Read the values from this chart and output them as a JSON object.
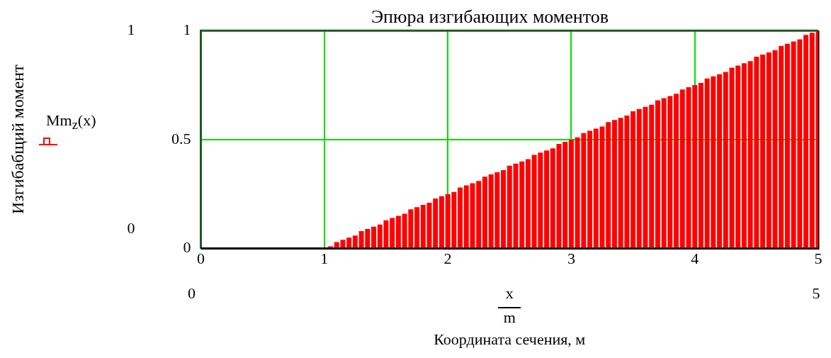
{
  "chart_data": {
    "type": "bar",
    "title": "Эпюра изгибающих моментов",
    "xlabel": "Координата сечения, м",
    "x": [
      1.05,
      1.1,
      1.15,
      1.2,
      1.25,
      1.3,
      1.35,
      1.4,
      1.45,
      1.5,
      1.55,
      1.6,
      1.65,
      1.7,
      1.75,
      1.8,
      1.85,
      1.9,
      1.95,
      2,
      2.05,
      2.1,
      2.15,
      2.2,
      2.25,
      2.3,
      2.35,
      2.4,
      2.45,
      2.5,
      2.55,
      2.6,
      2.65,
      2.7,
      2.75,
      2.8,
      2.85,
      2.9,
      2.95,
      3,
      3.05,
      3.1,
      3.15,
      3.2,
      3.25,
      3.3,
      3.35,
      3.4,
      3.45,
      3.5,
      3.55,
      3.6,
      3.65,
      3.7,
      3.75,
      3.8,
      3.85,
      3.9,
      3.95,
      4,
      4.05,
      4.1,
      4.15,
      4.2,
      4.25,
      4.3,
      4.35,
      4.4,
      4.45,
      4.5,
      4.55,
      4.6,
      4.65,
      4.7,
      4.75,
      4.8,
      4.85,
      4.9,
      4.95,
      5
    ],
    "series": [
      {
        "name": "Mm$_{z}$(x)",
        "color": "#ff0000",
        "values": [
          0.01,
          0.03,
          0.04,
          0.05,
          0.06,
          0.08,
          0.09,
          0.1,
          0.11,
          0.13,
          0.14,
          0.15,
          0.16,
          0.18,
          0.19,
          0.2,
          0.21,
          0.23,
          0.24,
          0.25,
          0.26,
          0.28,
          0.29,
          0.3,
          0.31,
          0.33,
          0.34,
          0.35,
          0.36,
          0.38,
          0.39,
          0.4,
          0.41,
          0.43,
          0.44,
          0.45,
          0.46,
          0.48,
          0.49,
          0.5,
          0.51,
          0.53,
          0.54,
          0.55,
          0.56,
          0.58,
          0.59,
          0.6,
          0.61,
          0.63,
          0.64,
          0.65,
          0.66,
          0.68,
          0.69,
          0.7,
          0.71,
          0.73,
          0.74,
          0.75,
          0.76,
          0.78,
          0.79,
          0.8,
          0.81,
          0.83,
          0.84,
          0.85,
          0.86,
          0.88,
          0.89,
          0.9,
          0.91,
          0.93,
          0.94,
          0.95,
          0.96,
          0.98,
          0.99,
          1
        ]
      }
    ],
    "xlim": [
      0,
      5
    ],
    "xticks": [
      0,
      1,
      2,
      3,
      4,
      5
    ],
    "ylim": [
      0,
      1
    ],
    "yticks": [
      0,
      0.5,
      1
    ],
    "grid": true,
    "legend": "left",
    "annotations": [
      "1",
      "0",
      "0",
      "5",
      "x",
      "m",
      "Изгибабщий момент"
    ]
  }
}
